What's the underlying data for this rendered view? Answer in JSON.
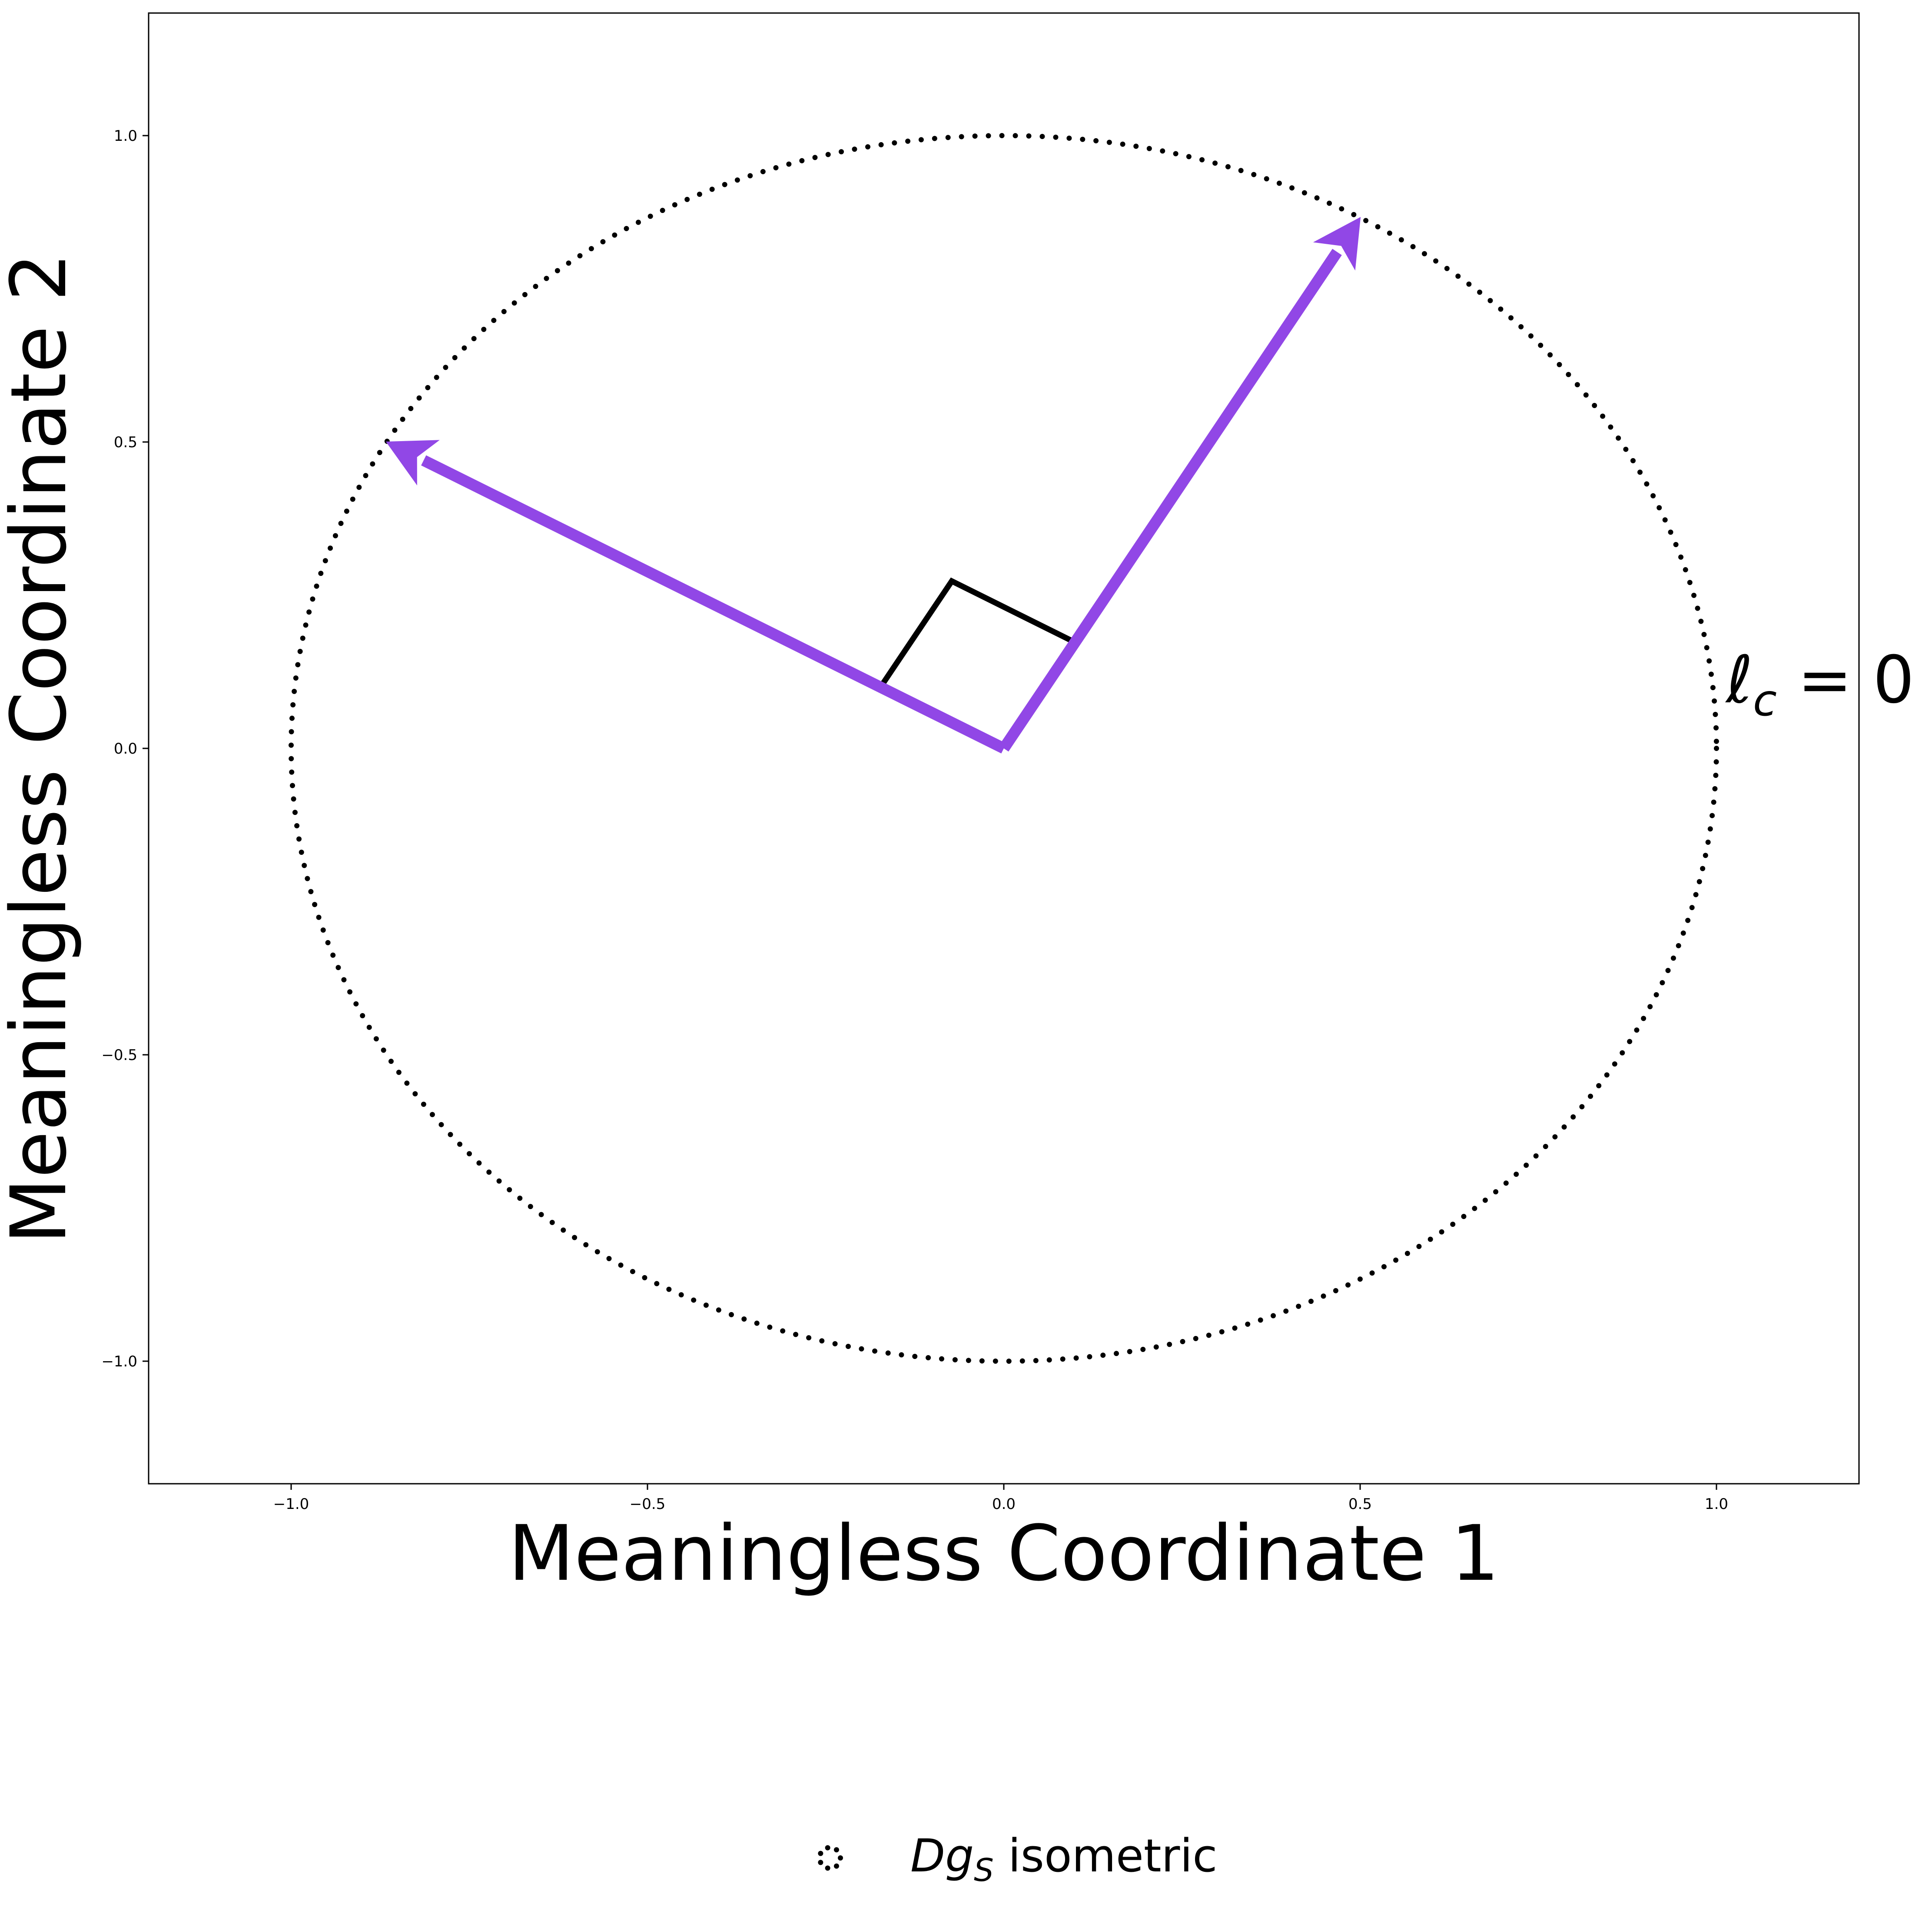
{
  "chart_data": {
    "type": "line",
    "title": "",
    "xlabel": "Meaningless Coordinate 1",
    "ylabel": "Meaningless Coordinate 2",
    "xlim": [
      -1.2,
      1.2
    ],
    "ylim": [
      -1.2,
      1.2
    ],
    "grid": false,
    "x_ticks": [
      -1.0,
      -0.5,
      0.0,
      0.5,
      1.0
    ],
    "x_tick_labels": [
      "−1.0",
      "−0.5",
      "0.0",
      "0.5",
      "1.0"
    ],
    "y_ticks": [
      -1.0,
      -0.5,
      0.0,
      0.5,
      1.0
    ],
    "y_tick_labels": [
      "−1.0",
      "−0.5",
      "0.0",
      "0.5",
      "1.0"
    ],
    "unit_circle": {
      "center": [
        0,
        0
      ],
      "radius": 1.0,
      "style": "dotted",
      "color": "#000000"
    },
    "vectors": [
      {
        "from": [
          0,
          0
        ],
        "to": [
          0.5,
          0.866
        ],
        "color": "#9147e6"
      },
      {
        "from": [
          0,
          0
        ],
        "to": [
          -0.866,
          0.5
        ],
        "color": "#9147e6"
      }
    ],
    "right_angle_marker": {
      "points": [
        [
          -0.173,
          0.1
        ],
        [
          -0.073,
          0.273
        ],
        [
          0.1,
          0.173
        ]
      ],
      "color": "#000000"
    },
    "annotation": {
      "text_main": "ℓ",
      "text_sub": "c",
      "text_rest": " = 0",
      "x": 1.05,
      "y": 0.1
    },
    "legend": {
      "placement": "bottom-center",
      "marker_icon": "dotted-circle-icon",
      "label_main": "Dg",
      "label_sub": "S",
      "label_rest": " isometric"
    }
  }
}
